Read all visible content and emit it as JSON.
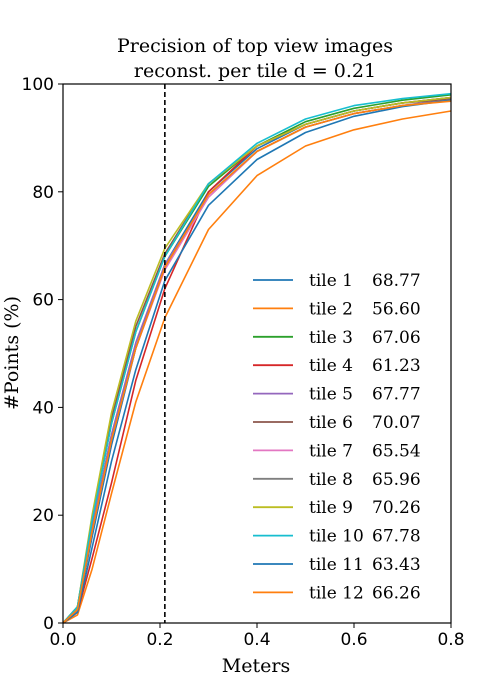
{
  "chart_data": {
    "type": "line",
    "title_lines": [
      "Precision of top view images",
      "reconst. per tile d = 0.21"
    ],
    "xlabel": "Meters",
    "ylabel": "#Points (%)",
    "xlim": [
      0,
      0.8
    ],
    "ylim": [
      0,
      100
    ],
    "xticks": [
      0.0,
      0.2,
      0.4,
      0.6,
      0.8
    ],
    "xtick_labels": [
      "0.0",
      "0.2",
      "0.4",
      "0.6",
      "0.8"
    ],
    "yticks": [
      0,
      20,
      40,
      60,
      80,
      100
    ],
    "ytick_labels": [
      "0",
      "20",
      "40",
      "60",
      "80",
      "100"
    ],
    "threshold_line": {
      "x": 0.21,
      "style": "dashed",
      "color": "#000000"
    },
    "grid": false,
    "legend_position": "lower-right",
    "x": [
      0.0,
      0.03,
      0.06,
      0.1,
      0.15,
      0.21,
      0.3,
      0.4,
      0.5,
      0.6,
      0.7,
      0.8
    ],
    "series": [
      {
        "name": "tile 1",
        "value_label": "68.77",
        "color": "#1f77b4",
        "values": [
          0,
          2.5,
          16,
          33,
          51,
          66.5,
          80,
          88,
          92.5,
          95,
          96.5,
          97.5
        ]
      },
      {
        "name": "tile 2",
        "value_label": "56.60",
        "color": "#ff7f0e",
        "values": [
          0,
          1.5,
          10,
          24,
          41,
          56.6,
          73,
          83,
          88.5,
          91.5,
          93.5,
          95.0
        ]
      },
      {
        "name": "tile 3",
        "value_label": "67.06",
        "color": "#2ca02c",
        "values": [
          0,
          3,
          19,
          37,
          54,
          68,
          81,
          88.5,
          93,
          95.5,
          97,
          98
        ]
      },
      {
        "name": "tile 4",
        "value_label": "61.23",
        "color": "#d62728",
        "values": [
          0,
          2,
          12,
          26,
          45,
          62,
          80,
          88.5,
          92.5,
          95,
          96.5,
          97.5
        ]
      },
      {
        "name": "tile 5",
        "value_label": "67.77",
        "color": "#9467bd",
        "values": [
          0,
          2.5,
          18,
          35,
          52,
          66.5,
          79,
          87.5,
          92,
          94.5,
          96,
          97.2
        ]
      },
      {
        "name": "tile 6",
        "value_label": "70.07",
        "color": "#8c564b",
        "values": [
          0,
          3,
          19,
          38,
          55,
          68.5,
          81.5,
          88.5,
          92.5,
          95,
          96.5,
          97.2
        ]
      },
      {
        "name": "tile 7",
        "value_label": "65.54",
        "color": "#e377c2",
        "values": [
          0,
          2.5,
          17,
          34,
          51,
          65.5,
          79,
          87.5,
          92,
          94.5,
          96,
          97
        ]
      },
      {
        "name": "tile 8",
        "value_label": "65.96",
        "color": "#7f7f7f",
        "values": [
          0,
          2.5,
          17,
          34,
          51,
          66,
          79.5,
          87.5,
          92,
          94.5,
          96,
          97
        ]
      },
      {
        "name": "tile 9",
        "value_label": "70.26",
        "color": "#bcbd22",
        "values": [
          0,
          3,
          20,
          39,
          56,
          69.5,
          81.5,
          88.5,
          92.5,
          95,
          96.5,
          97.5
        ]
      },
      {
        "name": "tile 10",
        "value_label": "67.78",
        "color": "#17becf",
        "values": [
          0,
          3,
          19,
          37,
          54,
          68,
          81.5,
          89,
          93.5,
          96,
          97.3,
          98.2
        ]
      },
      {
        "name": "tile 11",
        "value_label": "63.43",
        "color": "#1f77b4",
        "values": [
          0,
          2,
          14,
          30,
          47,
          63.5,
          77.5,
          86,
          91,
          94,
          95.8,
          97
        ]
      },
      {
        "name": "tile 12",
        "value_label": "66.26",
        "color": "#ff7f0e",
        "values": [
          0,
          2.5,
          17,
          34,
          51,
          66,
          79.5,
          87.5,
          92,
          94.5,
          96,
          96.8
        ]
      }
    ]
  }
}
